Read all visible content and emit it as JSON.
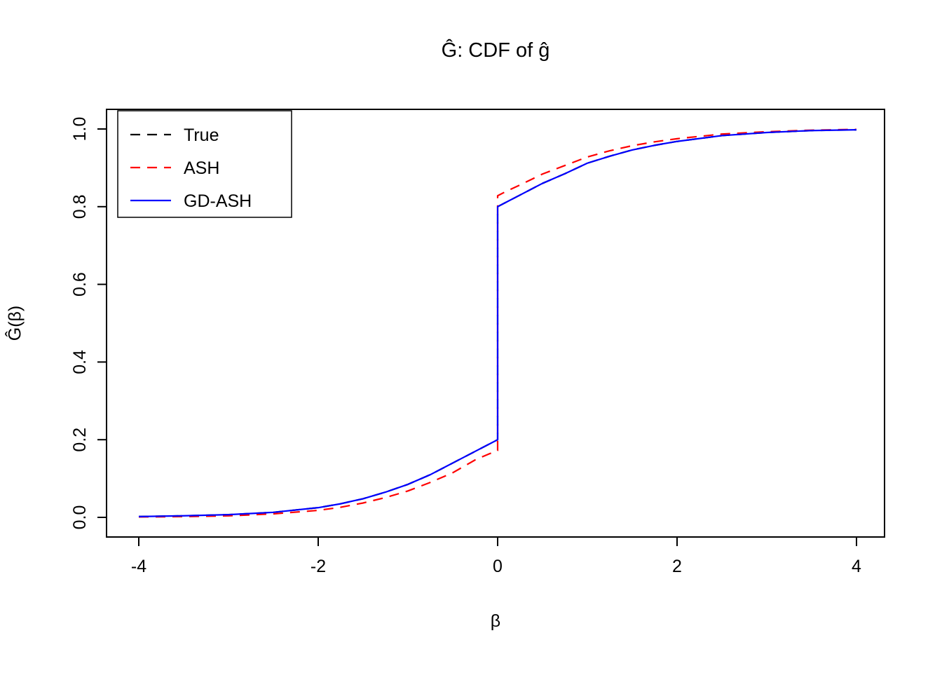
{
  "chart_data": {
    "type": "line",
    "title": "Ĝ: CDF of ĝ",
    "xlabel": "β",
    "ylabel": "Ĝ(β)",
    "xlim": [
      -4.35,
      4.35
    ],
    "ylim": [
      -0.04,
      1.04
    ],
    "x_ticks": [
      -4,
      -2,
      0,
      2,
      4
    ],
    "x_tick_labels": [
      "-4",
      "-2",
      "0",
      "2",
      "4"
    ],
    "y_ticks": [
      0.0,
      0.2,
      0.4,
      0.6,
      0.8,
      1.0
    ],
    "y_tick_labels": [
      "0.0",
      "0.2",
      "0.4",
      "0.6",
      "0.8",
      "1.0"
    ],
    "grid": false,
    "legend_position": "top-left",
    "legend_items": [
      "True",
      "ASH",
      "GD-ASH"
    ],
    "series": [
      {
        "name": "True",
        "color": "#000000",
        "dash": "dashed",
        "x": [
          -4,
          -3.5,
          -3,
          -2.5,
          -2,
          -1.75,
          -1.5,
          -1.25,
          -1,
          -0.75,
          -0.5,
          -0.25,
          -0.1,
          0,
          0,
          0.1,
          0.25,
          0.5,
          0.75,
          1,
          1.25,
          1.5,
          1.75,
          2,
          2.5,
          3,
          3.5,
          4
        ],
        "y": [
          0.002,
          0.004,
          0.007,
          0.013,
          0.025,
          0.035,
          0.048,
          0.065,
          0.085,
          0.11,
          0.14,
          0.17,
          0.188,
          0.2,
          0.8,
          0.812,
          0.83,
          0.86,
          0.885,
          0.912,
          0.93,
          0.946,
          0.958,
          0.968,
          0.983,
          0.991,
          0.996,
          0.998
        ]
      },
      {
        "name": "ASH",
        "color": "#ff0000",
        "dash": "dashed",
        "x": [
          -4,
          -3.5,
          -3,
          -2.5,
          -2,
          -1.75,
          -1.5,
          -1.25,
          -1,
          -0.75,
          -0.5,
          -0.25,
          -0.1,
          0,
          0,
          0.1,
          0.25,
          0.5,
          0.75,
          1,
          1.25,
          1.5,
          1.75,
          2,
          2.5,
          3,
          3.5,
          4
        ],
        "y": [
          0.001,
          0.002,
          0.004,
          0.009,
          0.018,
          0.026,
          0.037,
          0.051,
          0.068,
          0.09,
          0.115,
          0.148,
          0.163,
          0.172,
          0.828,
          0.84,
          0.856,
          0.884,
          0.906,
          0.928,
          0.944,
          0.957,
          0.967,
          0.975,
          0.987,
          0.993,
          0.997,
          0.999
        ]
      },
      {
        "name": "GD-ASH",
        "color": "#0000ff",
        "dash": "solid",
        "x": [
          -4,
          -3.5,
          -3,
          -2.5,
          -2,
          -1.75,
          -1.5,
          -1.25,
          -1,
          -0.75,
          -0.5,
          -0.25,
          -0.1,
          0,
          0,
          0.1,
          0.25,
          0.5,
          0.75,
          1,
          1.25,
          1.5,
          1.75,
          2,
          2.5,
          3,
          3.5,
          4
        ],
        "y": [
          0.002,
          0.004,
          0.007,
          0.013,
          0.025,
          0.035,
          0.048,
          0.065,
          0.085,
          0.11,
          0.14,
          0.17,
          0.188,
          0.2,
          0.8,
          0.812,
          0.83,
          0.86,
          0.885,
          0.912,
          0.93,
          0.946,
          0.958,
          0.968,
          0.983,
          0.991,
          0.996,
          0.998
        ]
      }
    ]
  }
}
